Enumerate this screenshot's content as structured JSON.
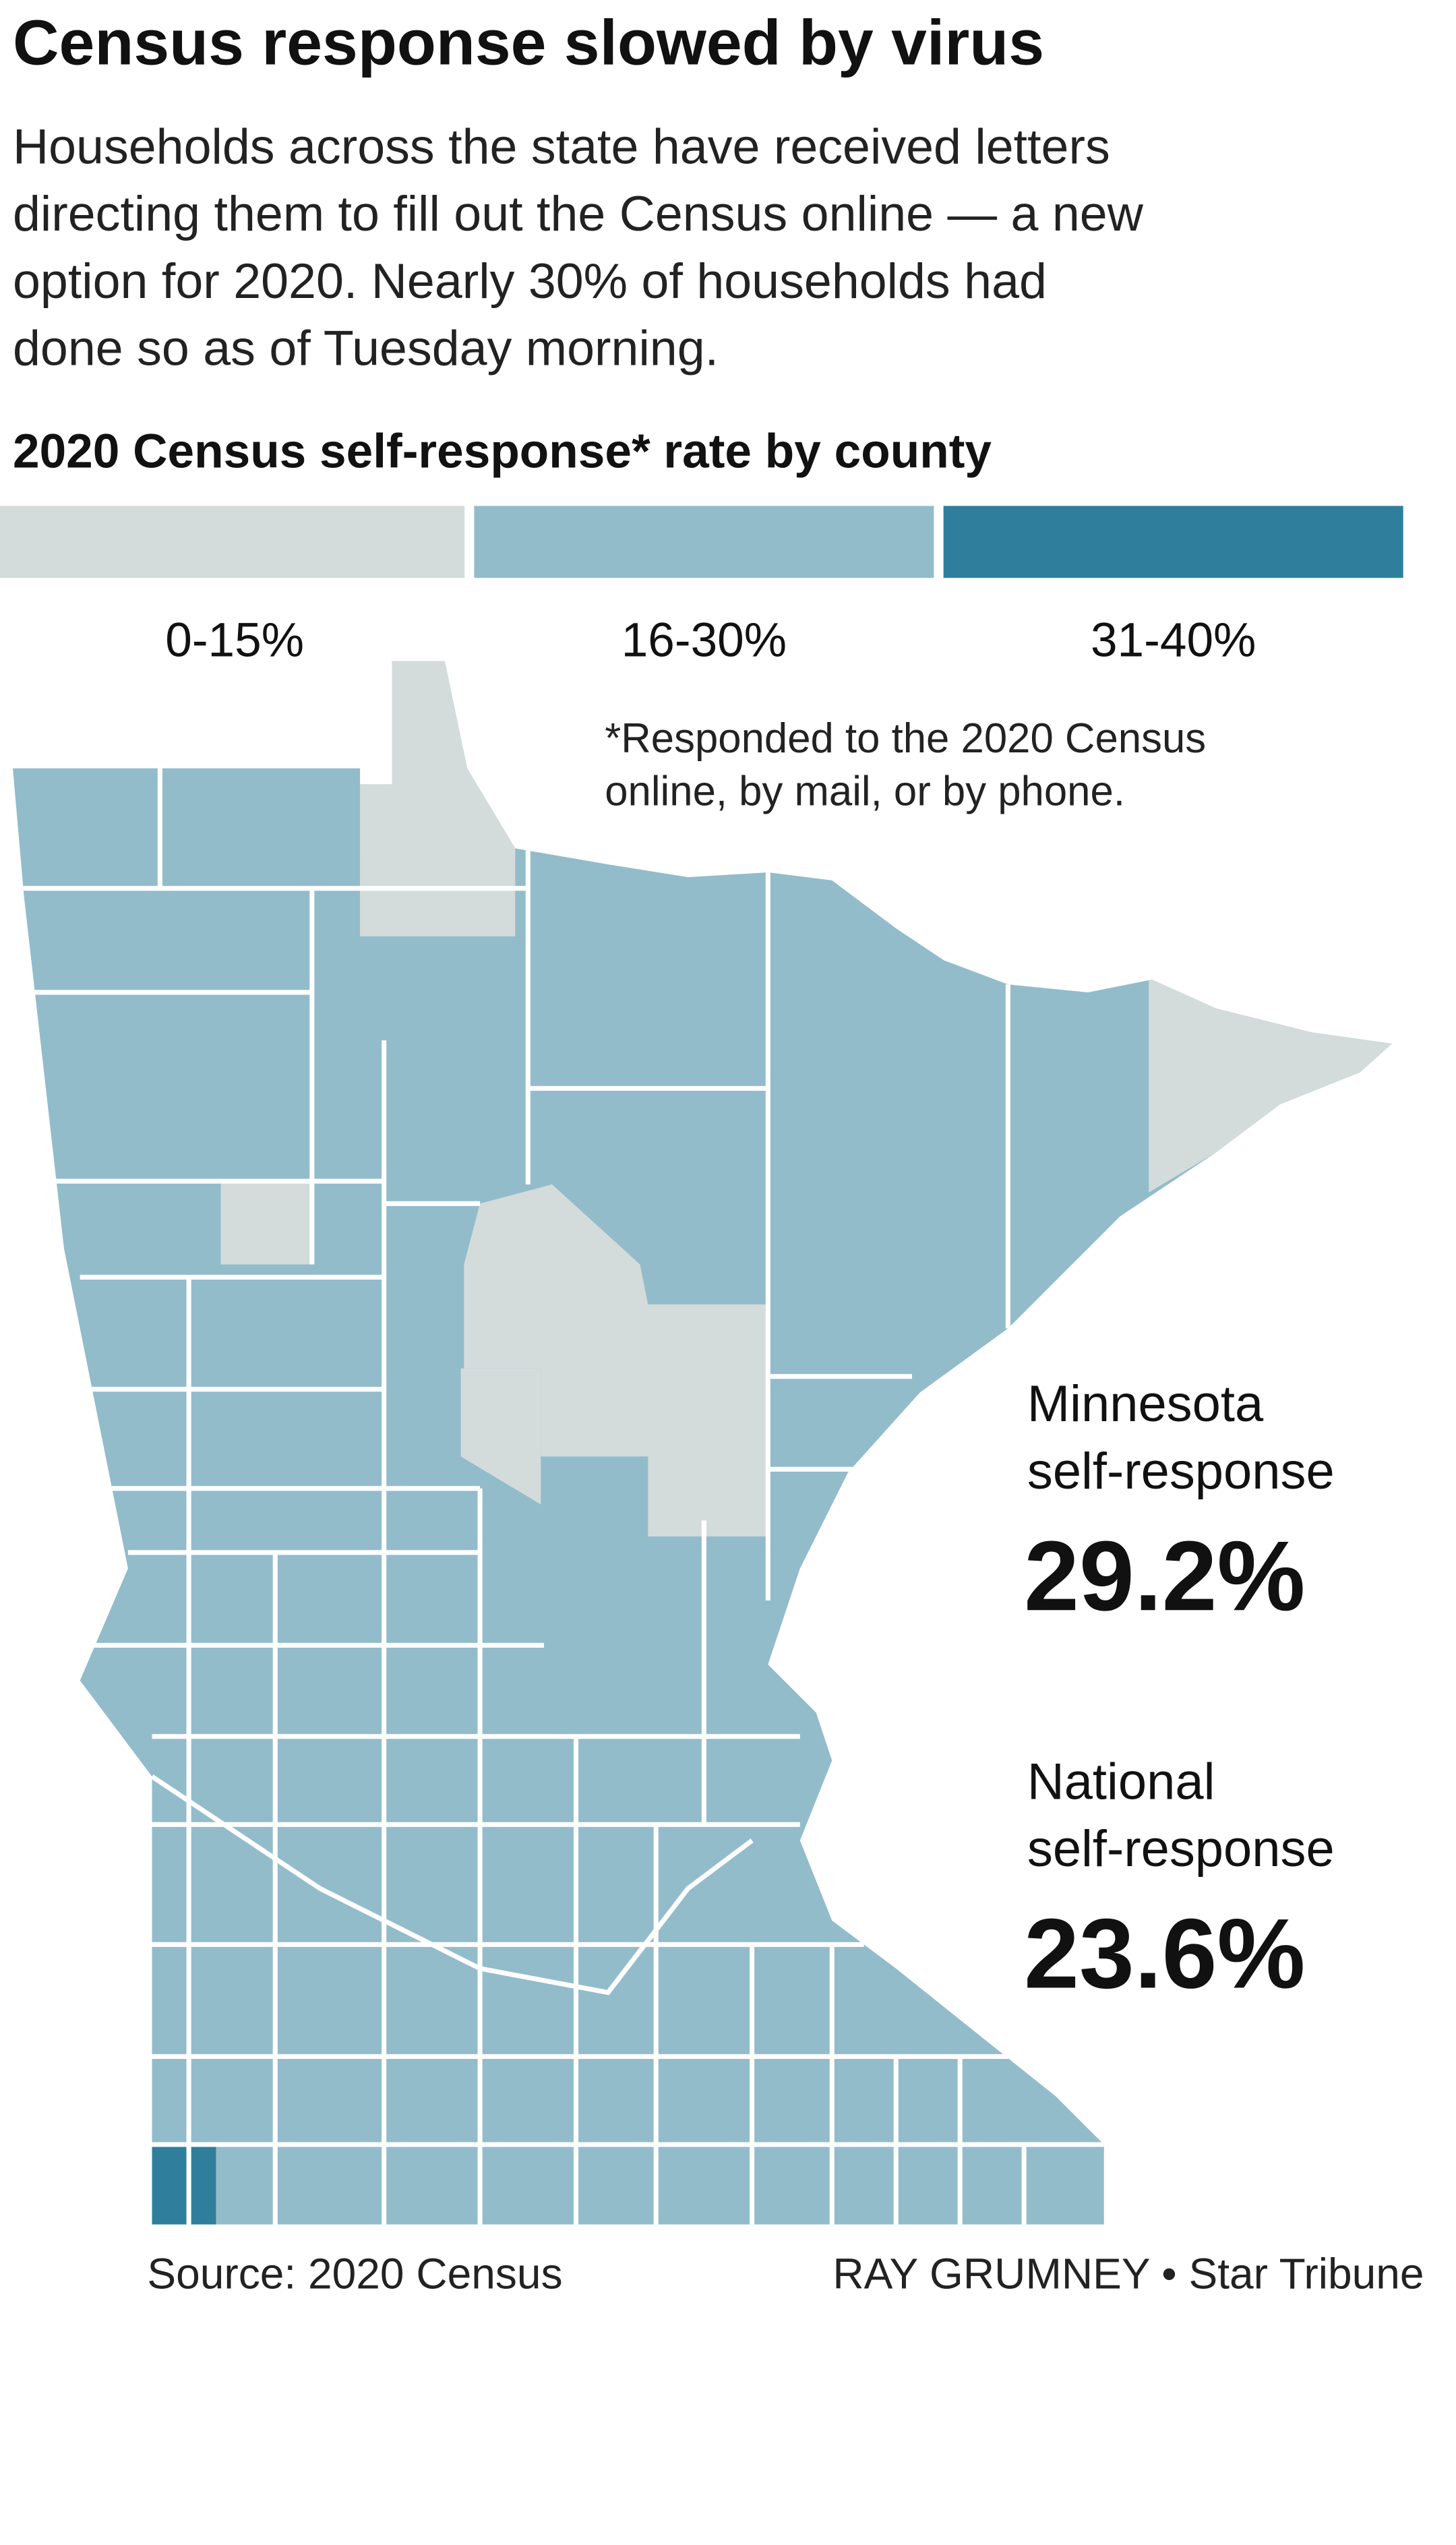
{
  "header": {
    "title": "Census response slowed by virus",
    "subtitle_lines": [
      "Households across the state have received letters",
      "directing them to fill out the Census online — a new",
      "option for 2020. Nearly 30% of households had",
      "done so as of Tuesday morning."
    ]
  },
  "legend": {
    "title": "2020 Census self-response* rate by county",
    "items": [
      {
        "label": "0-15%",
        "color": "#d3dcda"
      },
      {
        "label": "16-30%",
        "color": "#93bccb"
      },
      {
        "label": "31-40%",
        "color": "#2f7f9c"
      }
    ]
  },
  "footnote_lines": [
    "*Responded to the 2020 Census",
    "online, by mail, or by phone."
  ],
  "stats": [
    {
      "label_lines": [
        "Minnesota",
        "self-response"
      ],
      "value": "29.2%"
    },
    {
      "label_lines": [
        "National",
        "self-response"
      ],
      "value": "23.6%"
    }
  ],
  "footer": {
    "source": "Source: 2020 Census",
    "credit": "RAY GRUMNEY • Star Tribune"
  }
}
